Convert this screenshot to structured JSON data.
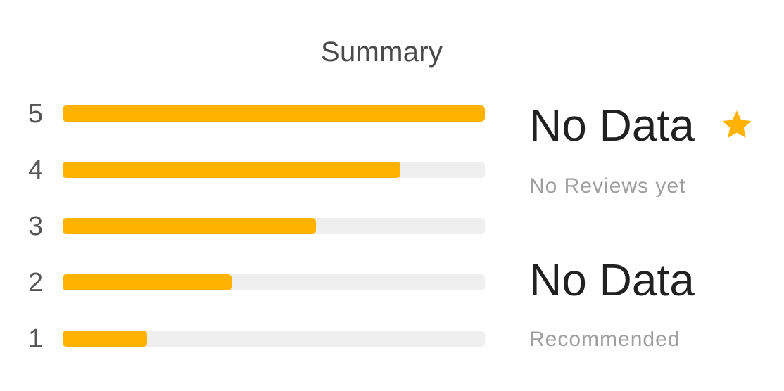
{
  "summary": {
    "title": "Summary"
  },
  "distribution": [
    {
      "label": "5",
      "fraction": 1.0
    },
    {
      "label": "4",
      "fraction": 0.8
    },
    {
      "label": "3",
      "fraction": 0.6
    },
    {
      "label": "2",
      "fraction": 0.4
    },
    {
      "label": "1",
      "fraction": 0.2
    }
  ],
  "rating": {
    "value": "No Data",
    "subtitle": "No Reviews yet",
    "icon": "star-icon"
  },
  "recommended": {
    "value": "No Data",
    "subtitle": "Recommended"
  },
  "colors": {
    "bar_fill": "#FFB300",
    "bar_track": "#EFEFEF",
    "star": "#FFB300"
  }
}
